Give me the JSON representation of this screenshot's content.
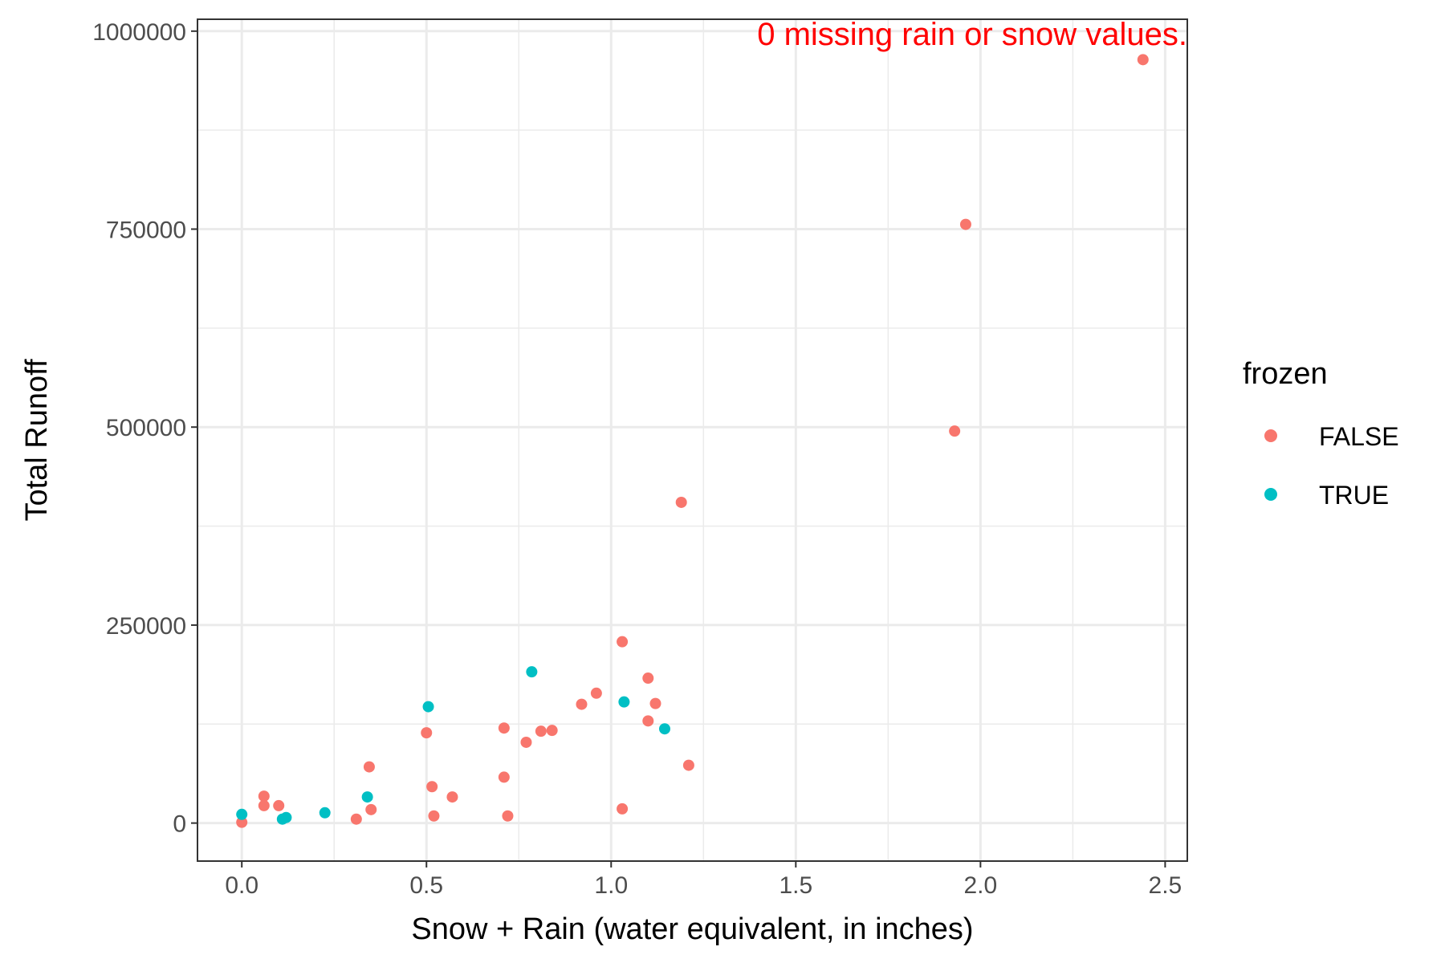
{
  "chart_data": {
    "type": "scatter",
    "title": "",
    "xlabel": "Snow + Rain (water equivalent, in inches)",
    "ylabel": "Total Runoff",
    "xlim": [
      -0.12,
      2.56
    ],
    "ylim": [
      -48000,
      1015000
    ],
    "x_ticks": [
      0.0,
      0.5,
      1.0,
      1.5,
      2.0,
      2.5
    ],
    "x_tick_labels": [
      "0.0",
      "0.5",
      "1.0",
      "1.5",
      "2.0",
      "2.5"
    ],
    "y_ticks": [
      0,
      250000,
      500000,
      750000,
      1000000
    ],
    "y_tick_labels": [
      "0",
      "250000",
      "500000",
      "750000",
      "1000000"
    ],
    "grid": true,
    "legend": {
      "title": "frozen",
      "position": "right"
    },
    "annotation": {
      "text": "0 missing rain or snow values.",
      "color": "#ff0000"
    },
    "series": [
      {
        "name": "FALSE",
        "color": "#f8766d",
        "points": [
          [
            0.0,
            1000
          ],
          [
            0.06,
            34000
          ],
          [
            0.06,
            22000
          ],
          [
            0.1,
            22000
          ],
          [
            0.31,
            5000
          ],
          [
            0.345,
            71000
          ],
          [
            0.35,
            17000
          ],
          [
            0.5,
            114000
          ],
          [
            0.515,
            46000
          ],
          [
            0.52,
            9000
          ],
          [
            0.57,
            33000
          ],
          [
            0.71,
            120000
          ],
          [
            0.71,
            58000
          ],
          [
            0.72,
            9000
          ],
          [
            0.77,
            102000
          ],
          [
            0.81,
            116000
          ],
          [
            0.84,
            117000
          ],
          [
            0.92,
            150000
          ],
          [
            0.96,
            164000
          ],
          [
            1.03,
            229000
          ],
          [
            1.03,
            18000
          ],
          [
            1.1,
            183000
          ],
          [
            1.1,
            129000
          ],
          [
            1.12,
            151000
          ],
          [
            1.19,
            405000
          ],
          [
            1.21,
            73000
          ],
          [
            1.93,
            495000
          ],
          [
            1.96,
            756000
          ],
          [
            2.44,
            964000
          ]
        ]
      },
      {
        "name": "TRUE",
        "color": "#00bfc4",
        "points": [
          [
            0.0,
            11000
          ],
          [
            0.11,
            5000
          ],
          [
            0.12,
            7000
          ],
          [
            0.225,
            13000
          ],
          [
            0.34,
            33000
          ],
          [
            0.505,
            147000
          ],
          [
            0.785,
            191000
          ],
          [
            1.035,
            153000
          ],
          [
            1.145,
            119000
          ]
        ]
      }
    ]
  }
}
